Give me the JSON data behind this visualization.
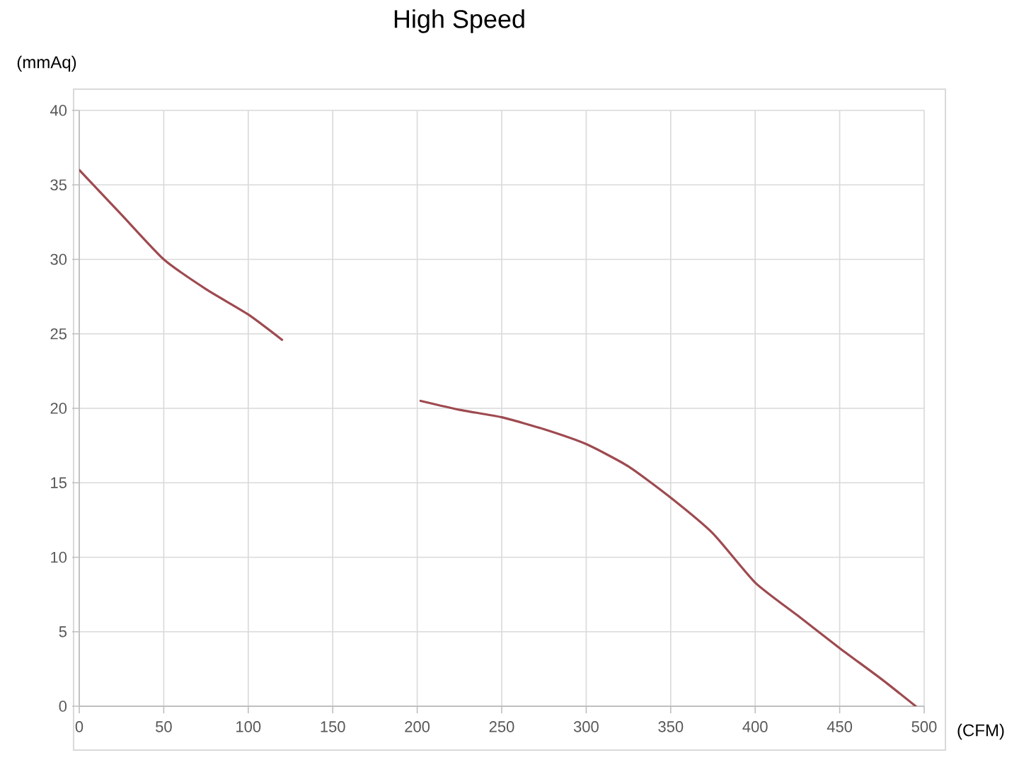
{
  "chart_data": {
    "type": "line",
    "title": "High Speed",
    "xlabel": "(CFM)",
    "ylabel": "(mmAq)",
    "x": [
      0,
      25,
      50,
      75,
      100,
      120,
      160,
      202,
      225,
      250,
      275,
      300,
      325,
      350,
      375,
      400,
      425,
      450,
      475,
      495
    ],
    "series": [
      {
        "color": "#9e4a50",
        "values": [
          36.0,
          33.0,
          30.0,
          28.0,
          26.3,
          24.6,
          null,
          20.5,
          19.9,
          19.4,
          18.6,
          17.6,
          16.1,
          14.0,
          11.6,
          8.3,
          6.1,
          3.9,
          1.8,
          0
        ]
      }
    ],
    "xlim": [
      0,
      500
    ],
    "ylim": [
      0,
      40
    ],
    "xticks": [
      0,
      50,
      100,
      150,
      200,
      250,
      300,
      350,
      400,
      450,
      500
    ],
    "yticks": [
      0,
      5,
      10,
      15,
      20,
      25,
      30,
      35,
      40
    ],
    "grid": true
  }
}
